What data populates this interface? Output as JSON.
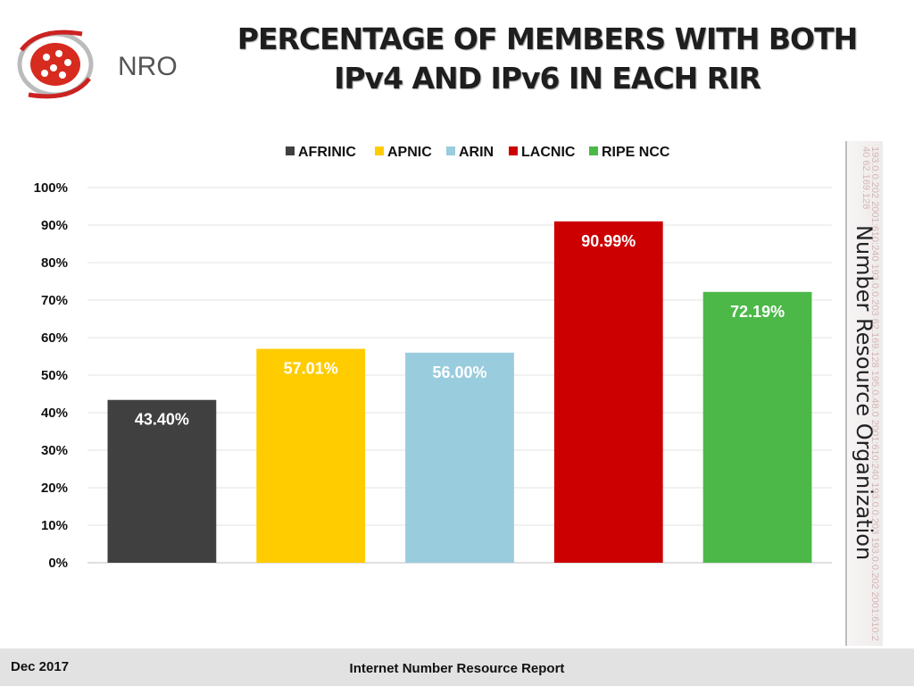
{
  "header": {
    "title_line1": "PERCENTAGE OF MEMBERS WITH BOTH",
    "title_line2": "IPv4 AND IPv6 IN EACH RIR"
  },
  "logo": {
    "text": "NRO"
  },
  "side": {
    "label": "Number Resource Organization",
    "watermark": "193.0.0.202 2001:610:240 193.0.0.203 62.169.128 195.0.48.0 2001:610:240 193.0.0.203 193.0.0.202 2001:610:240 62.169.128"
  },
  "footer": {
    "date": "Dec 2017",
    "report": "Internet Number Resource Report"
  },
  "chart_data": {
    "type": "bar",
    "title": "PERCENTAGE OF MEMBERS WITH BOTH IPv4 AND IPv6 IN EACH RIR",
    "categories": [
      "AFRINIC",
      "APNIC",
      "ARIN",
      "LACNIC",
      "RIPE NCC"
    ],
    "values": [
      43.4,
      57.01,
      56.0,
      90.99,
      72.19
    ],
    "value_labels": [
      "43.40%",
      "57.01%",
      "56.00%",
      "90.99%",
      "72.19%"
    ],
    "colors": [
      "#404040",
      "#ffcc00",
      "#99ccdd",
      "#cc0000",
      "#4cb848"
    ],
    "label_colors": [
      "#ffffff",
      "#ffffff",
      "#ffffff",
      "#ffffff",
      "#ffffff"
    ],
    "ylim": [
      0,
      100
    ],
    "yticks": [
      "0%",
      "10%",
      "20%",
      "30%",
      "40%",
      "50%",
      "60%",
      "70%",
      "80%",
      "90%",
      "100%"
    ],
    "grid": true,
    "legend": {
      "position": "top",
      "entries": [
        "AFRINIC",
        "APNIC",
        "ARIN",
        "LACNIC",
        "RIPE NCC"
      ]
    }
  }
}
